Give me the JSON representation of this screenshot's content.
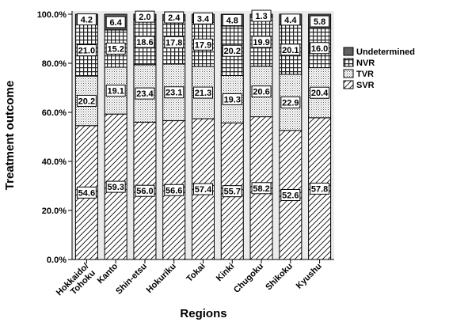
{
  "chart_data": {
    "type": "bar",
    "stacked": true,
    "xlabel": "Regions",
    "ylabel": "Treatment outcome",
    "ylim": [
      0,
      100
    ],
    "yticks": [
      "0.0%",
      "20.0%",
      "40.0%",
      "60.0%",
      "80.0%",
      "100.0%"
    ],
    "categories": [
      "Hokkaido/\nTohoku",
      "Kanto",
      "Shin-etsu",
      "Hokuriku",
      "Tokai",
      "Kinki",
      "Chugoku",
      "Shikoku",
      "Kyushu"
    ],
    "series": [
      {
        "name": "SVR",
        "pattern": "diagonal-hatch",
        "values": [
          54.6,
          59.3,
          56.0,
          56.6,
          57.4,
          55.7,
          58.2,
          52.6,
          57.8
        ]
      },
      {
        "name": "TVR",
        "pattern": "dots",
        "values": [
          20.2,
          19.1,
          23.4,
          23.1,
          21.3,
          19.3,
          20.6,
          22.9,
          20.4
        ]
      },
      {
        "name": "NVR",
        "pattern": "crosshatch",
        "values": [
          21.0,
          15.2,
          18.6,
          17.8,
          17.9,
          20.2,
          19.9,
          20.1,
          16.0
        ]
      },
      {
        "name": "Undetermined",
        "pattern": "solid-gray",
        "values": [
          4.2,
          6.4,
          2.0,
          2.4,
          3.4,
          4.8,
          1.3,
          4.4,
          5.8
        ]
      }
    ],
    "legend_order": [
      "Undetermined",
      "NVR",
      "TVR",
      "SVR"
    ],
    "legend_position": "right",
    "colors": {
      "plot_background": "#ebebeb",
      "undetermined": "#606060",
      "stroke": "#000000"
    }
  }
}
